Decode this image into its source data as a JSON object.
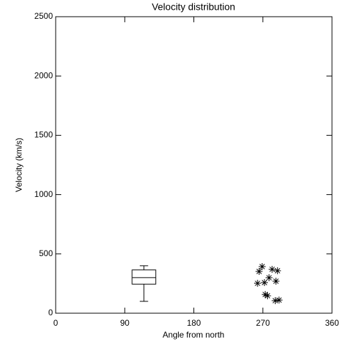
{
  "chart_data": {
    "type": "box",
    "title": "Velocity distribution",
    "xlabel": "Angle from north",
    "ylabel": "Velocity (km/s)",
    "xlim": [
      0,
      360
    ],
    "xticks": [
      0,
      90,
      180,
      270,
      360
    ],
    "ylim": [
      0,
      2500
    ],
    "yticks": [
      0,
      500,
      1000,
      1500,
      2000,
      2500
    ],
    "color": "#000000",
    "box": {
      "position": 115,
      "min": 100,
      "q1": 245,
      "median": 300,
      "q3": 365,
      "max": 400
    },
    "overlay": {
      "type": "scatter",
      "marker": "asterisk",
      "x": [
        269,
        265,
        282,
        289,
        278,
        263,
        272,
        287,
        273,
        276,
        286,
        291
      ],
      "y": [
        393,
        352,
        370,
        358,
        299,
        252,
        258,
        270,
        158,
        147,
        106,
        111
      ]
    }
  }
}
